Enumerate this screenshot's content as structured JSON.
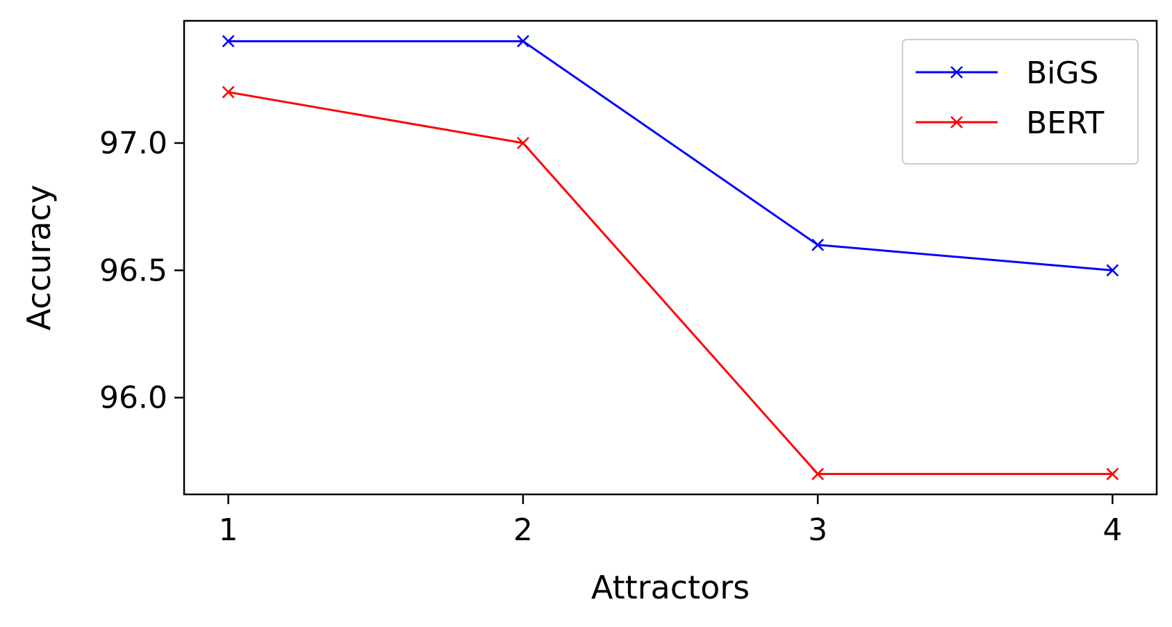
{
  "chart_data": {
    "type": "line",
    "title": "",
    "xlabel": "Attractors",
    "ylabel": "Accuracy",
    "x": [
      1,
      2,
      3,
      4
    ],
    "xticks": [
      "1",
      "2",
      "3",
      "4"
    ],
    "yticks": [
      "96.0",
      "96.5",
      "97.0"
    ],
    "xlim": [
      0.85,
      4.15
    ],
    "ylim": [
      95.62,
      97.48
    ],
    "grid": false,
    "legend_position": "top-right",
    "series": [
      {
        "name": "BiGS",
        "color": "#0000ff",
        "marker": "x",
        "values": [
          97.4,
          97.4,
          96.6,
          96.5
        ]
      },
      {
        "name": "BERT",
        "color": "#ff0000",
        "marker": "x",
        "values": [
          97.2,
          97.0,
          95.7,
          95.7
        ]
      }
    ]
  }
}
